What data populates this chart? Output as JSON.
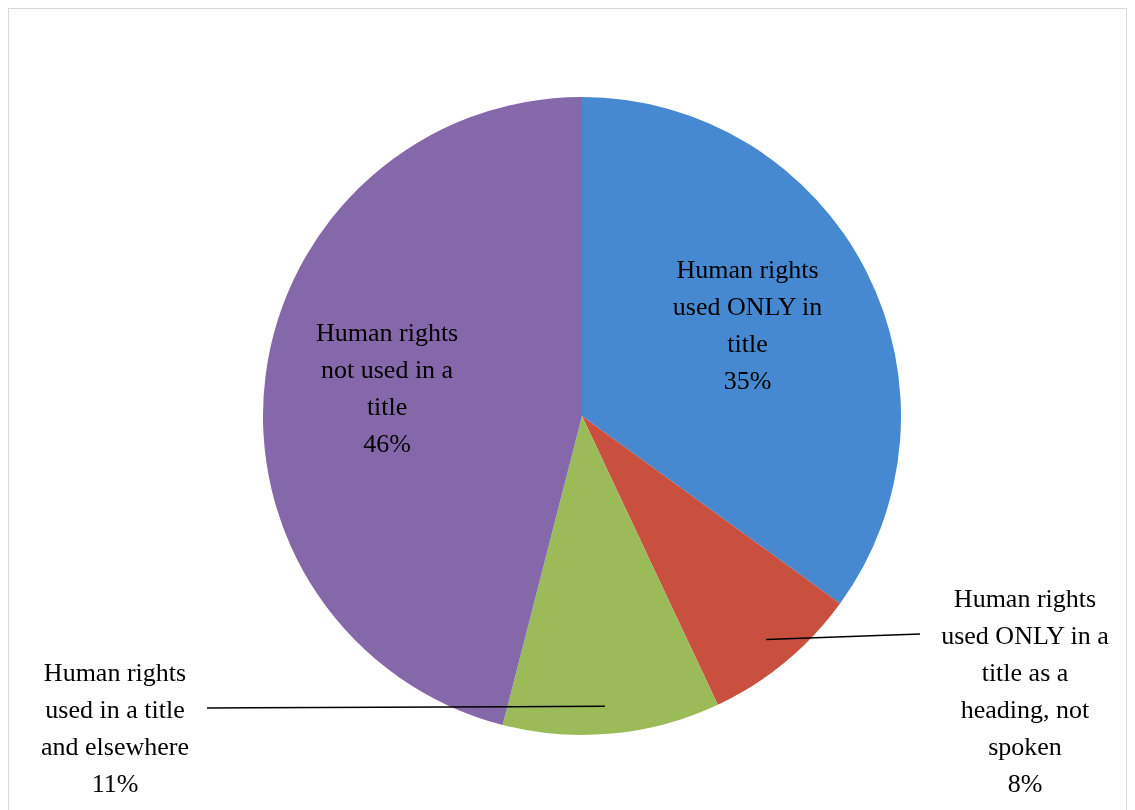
{
  "chart_data": {
    "type": "pie",
    "categories": [
      "Human rights used ONLY in title",
      "Human rights used ONLY in a title as a heading, not spoken",
      "Human rights used in a title and elsewhere",
      "Human rights not used in a title"
    ],
    "values": [
      35,
      8,
      11,
      46
    ],
    "value_labels": [
      "35%",
      "8%",
      "11%",
      "46%"
    ],
    "colors": [
      "#4689d0",
      "#c9503f",
      "#9bbb59",
      "#8468aa"
    ],
    "legend": false
  }
}
